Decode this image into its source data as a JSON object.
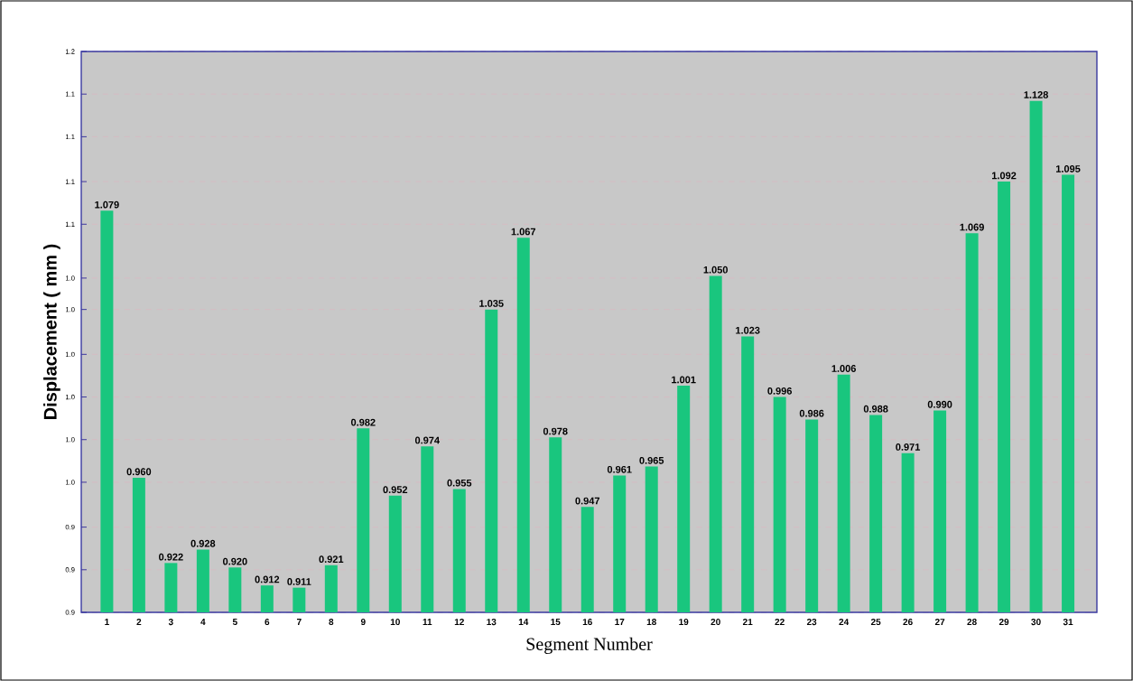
{
  "chart_data": {
    "type": "bar",
    "xlabel": "Segment Number",
    "ylabel": "Displacement  ( mm )",
    "categories": [
      "1",
      "2",
      "3",
      "4",
      "5",
      "6",
      "7",
      "8",
      "9",
      "10",
      "11",
      "12",
      "13",
      "14",
      "15",
      "16",
      "17",
      "18",
      "19",
      "20",
      "21",
      "22",
      "23",
      "24",
      "25",
      "26",
      "27",
      "28",
      "29",
      "30",
      "31"
    ],
    "values": [
      1.079,
      0.96,
      0.922,
      0.928,
      0.92,
      0.912,
      0.911,
      0.921,
      0.982,
      0.952,
      0.974,
      0.955,
      1.035,
      1.067,
      0.978,
      0.947,
      0.961,
      0.965,
      1.001,
      1.05,
      1.023,
      0.996,
      0.986,
      1.006,
      0.988,
      0.971,
      0.99,
      1.069,
      1.092,
      1.128,
      1.095
    ],
    "color": "#19c67e",
    "value_labels": [
      "1.079",
      "0.960",
      "0.922",
      "0.928",
      "0.920",
      "0.912",
      "0.911",
      "0.921",
      "0.982",
      "0.952",
      "0.974",
      "0.955",
      "1.035",
      "1.067",
      "0.978",
      "0.947",
      "0.961",
      "0.965",
      "1.001",
      "1.050",
      "1.023",
      "0.996",
      "0.986",
      "1.006",
      "0.988",
      "0.971",
      "0.990",
      "1.069",
      "1.092",
      "1.128",
      "1.095"
    ],
    "ylim": [
      0.9,
      1.15
    ],
    "yticks": [
      {
        "value": 0.9,
        "label": "0.9"
      },
      {
        "value": 0.919,
        "label": "0.9"
      },
      {
        "value": 0.938,
        "label": "0.9"
      },
      {
        "value": 0.958,
        "label": "1.0"
      },
      {
        "value": 0.977,
        "label": "1.0"
      },
      {
        "value": 0.996,
        "label": "1.0"
      },
      {
        "value": 1.015,
        "label": "1.0"
      },
      {
        "value": 1.035,
        "label": "1.0"
      },
      {
        "value": 1.049,
        "label": "1.0"
      },
      {
        "value": 1.073,
        "label": "1.1"
      },
      {
        "value": 1.092,
        "label": "1.1"
      },
      {
        "value": 1.112,
        "label": "1.1"
      },
      {
        "value": 1.131,
        "label": "1.1"
      },
      {
        "value": 1.15,
        "label": "1.2"
      }
    ],
    "grid": "y"
  }
}
